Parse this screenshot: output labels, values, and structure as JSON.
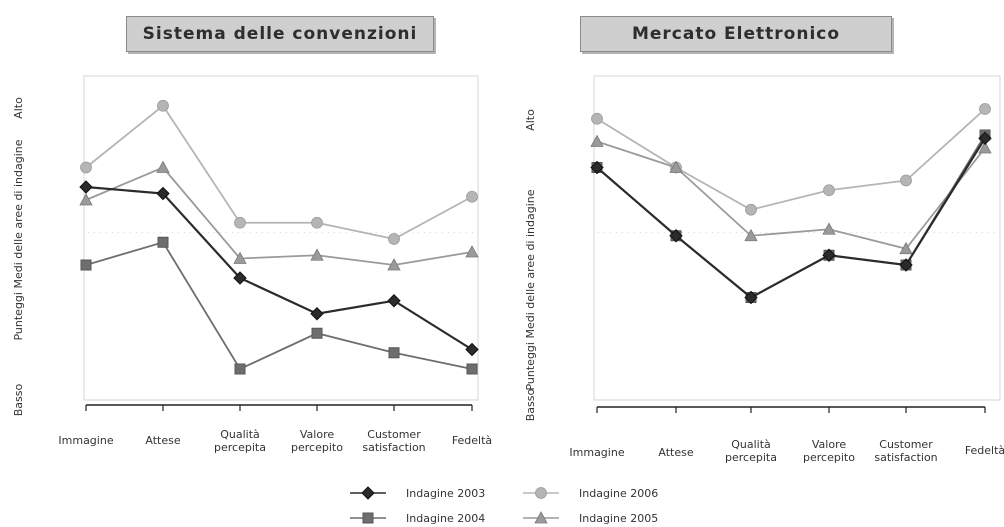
{
  "chart_data": [
    {
      "type": "line",
      "title": "Sistema delle convenzioni",
      "ylabel": "Punteggi Medi delle aree di indagine",
      "y_high_label": "Alto",
      "y_low_label": "Basso",
      "categories": [
        [
          "Immagine"
        ],
        [
          "Attese"
        ],
        [
          "Qualità",
          "percepita"
        ],
        [
          "Valore",
          "percepito"
        ],
        [
          "Customer",
          "satisfaction"
        ],
        [
          "Fedeltà"
        ]
      ],
      "ylim": [
        0,
        100
      ],
      "grid": false,
      "series": [
        {
          "name": "Indagine 2003",
          "marker": "diamond",
          "color": "#2b2b2b",
          "values": [
            64,
            62,
            36,
            25,
            29,
            14
          ]
        },
        {
          "name": "Indagine 2004",
          "marker": "square",
          "color": "#6e6e6e",
          "values": [
            40,
            47,
            8,
            19,
            13,
            8
          ]
        },
        {
          "name": "Indagine 2006",
          "marker": "circle",
          "color": "#b5b5b5",
          "values": [
            70,
            89,
            53,
            53,
            48,
            61
          ]
        },
        {
          "name": "Indagine 2005",
          "marker": "triangle",
          "color": "#9a9a9a",
          "values": [
            60,
            70,
            42,
            43,
            40,
            44
          ]
        }
      ]
    },
    {
      "type": "line",
      "title": "Mercato Elettronico",
      "ylabel": "Punteggi Medi delle aree di indagine",
      "y_high_label": "Alto",
      "y_low_label": "Basso",
      "categories": [
        [
          "Immagine"
        ],
        [
          "Attese"
        ],
        [
          "Qualità",
          "percepita"
        ],
        [
          "Valore",
          "percepito"
        ],
        [
          "Customer",
          "satisfaction"
        ],
        [
          "Fedeltà"
        ]
      ],
      "ylim": [
        0,
        100
      ],
      "grid": false,
      "series": [
        {
          "name": "Indagine 2003",
          "marker": "diamond",
          "color": "#2b2b2b",
          "values": [
            70,
            49,
            30,
            43,
            40,
            79
          ]
        },
        {
          "name": "Indagine 2004",
          "marker": "square",
          "color": "#6e6e6e",
          "values": [
            70,
            49,
            30,
            43,
            40,
            80
          ]
        },
        {
          "name": "Indagine 2006",
          "marker": "circle",
          "color": "#b5b5b5",
          "values": [
            85,
            70,
            57,
            63,
            66,
            88
          ]
        },
        {
          "name": "Indagine 2005",
          "marker": "triangle",
          "color": "#9a9a9a",
          "values": [
            78,
            70,
            49,
            51,
            45,
            76
          ]
        }
      ]
    }
  ],
  "legend": [
    {
      "label": "Indagine 2003",
      "marker": "diamond",
      "color": "#2b2b2b"
    },
    {
      "label": "Indagine 2004",
      "marker": "square",
      "color": "#6e6e6e"
    },
    {
      "label": "Indagine 2006",
      "marker": "circle",
      "color": "#b5b5b5"
    },
    {
      "label": "Indagine 2005",
      "marker": "triangle",
      "color": "#9a9a9a"
    }
  ]
}
